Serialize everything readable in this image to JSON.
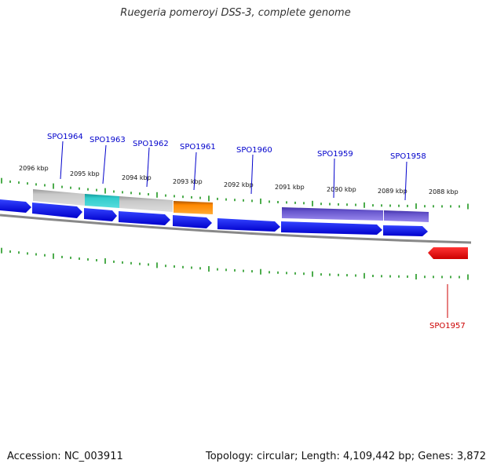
{
  "title": "Ruegeria pomeroyi DSS-3, complete genome",
  "footer": {
    "accession": "Accession: NC_003911",
    "summary": "Topology: circular; Length: 4,109,442 bp; Genes: 3,872"
  },
  "colors": {
    "forward_gene": "#0000ff",
    "reverse_gene": "#ee0000",
    "backbone": "#888888",
    "ticks": "#008800",
    "label_blue": "#0000cc",
    "label_red": "#cc0000",
    "feature_gray": "#bbbbbb",
    "feature_cyan": "#33cccc",
    "feature_orange": "#ff8800",
    "feature_purple": "#6655cc"
  },
  "kbp_labels": [
    "2096 kbp",
    "2095 kbp",
    "2094 kbp",
    "2093 kbp",
    "2092 kbp",
    "2091 kbp",
    "2090 kbp",
    "2089 kbp",
    "2088 kbp"
  ],
  "genes": [
    {
      "id": "SPO1964",
      "strand": "forward"
    },
    {
      "id": "SPO1963",
      "strand": "forward"
    },
    {
      "id": "SPO1962",
      "strand": "forward"
    },
    {
      "id": "SPO1961",
      "strand": "forward"
    },
    {
      "id": "SPO1960",
      "strand": "forward"
    },
    {
      "id": "SPO1959",
      "strand": "forward"
    },
    {
      "id": "SPO1958",
      "strand": "forward"
    },
    {
      "id": "SPO1957",
      "strand": "reverse"
    }
  ]
}
